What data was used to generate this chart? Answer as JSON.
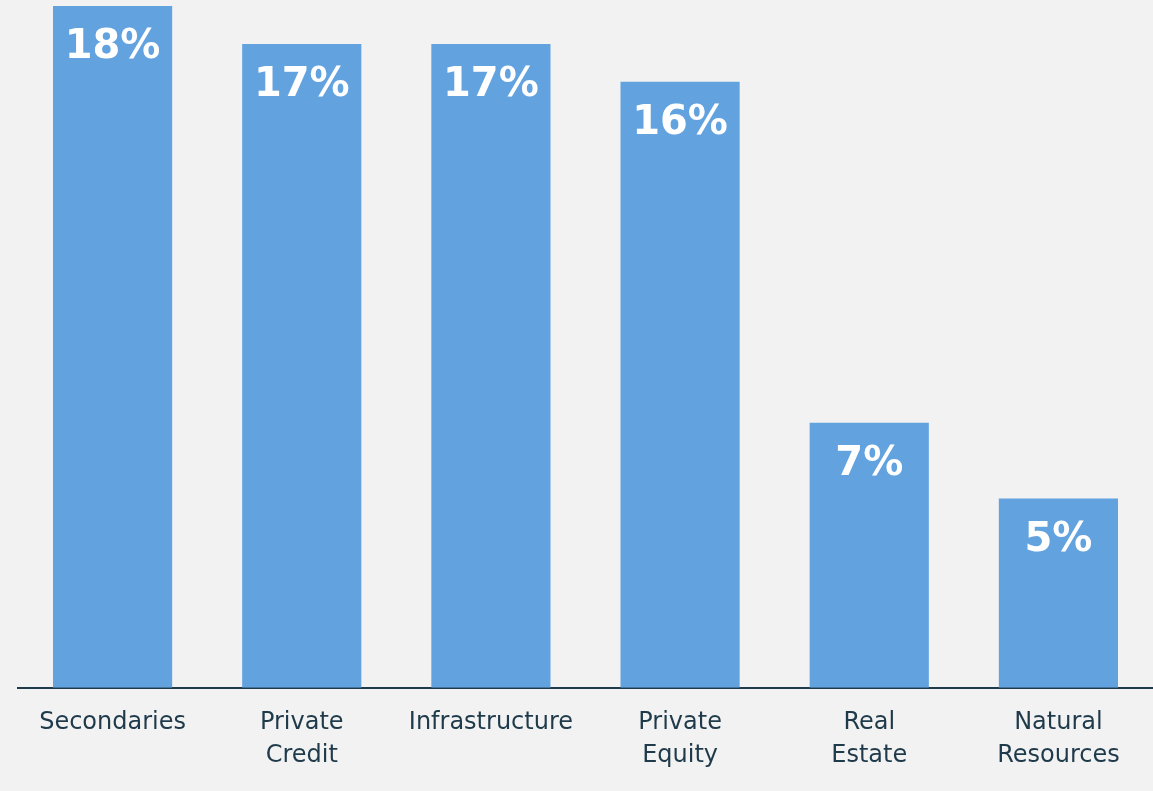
{
  "chart_data": {
    "type": "bar",
    "categories": [
      "Secondaries",
      "Private Credit",
      "Infrastructure",
      "Private Equity",
      "Real Estate",
      "Natural Resources"
    ],
    "values": [
      18,
      17,
      17,
      16,
      7,
      5
    ],
    "value_labels": [
      "18%",
      "17%",
      "17%",
      "16%",
      "7%",
      "5%"
    ],
    "color": "#62a2df",
    "grid": false,
    "legend": false
  }
}
